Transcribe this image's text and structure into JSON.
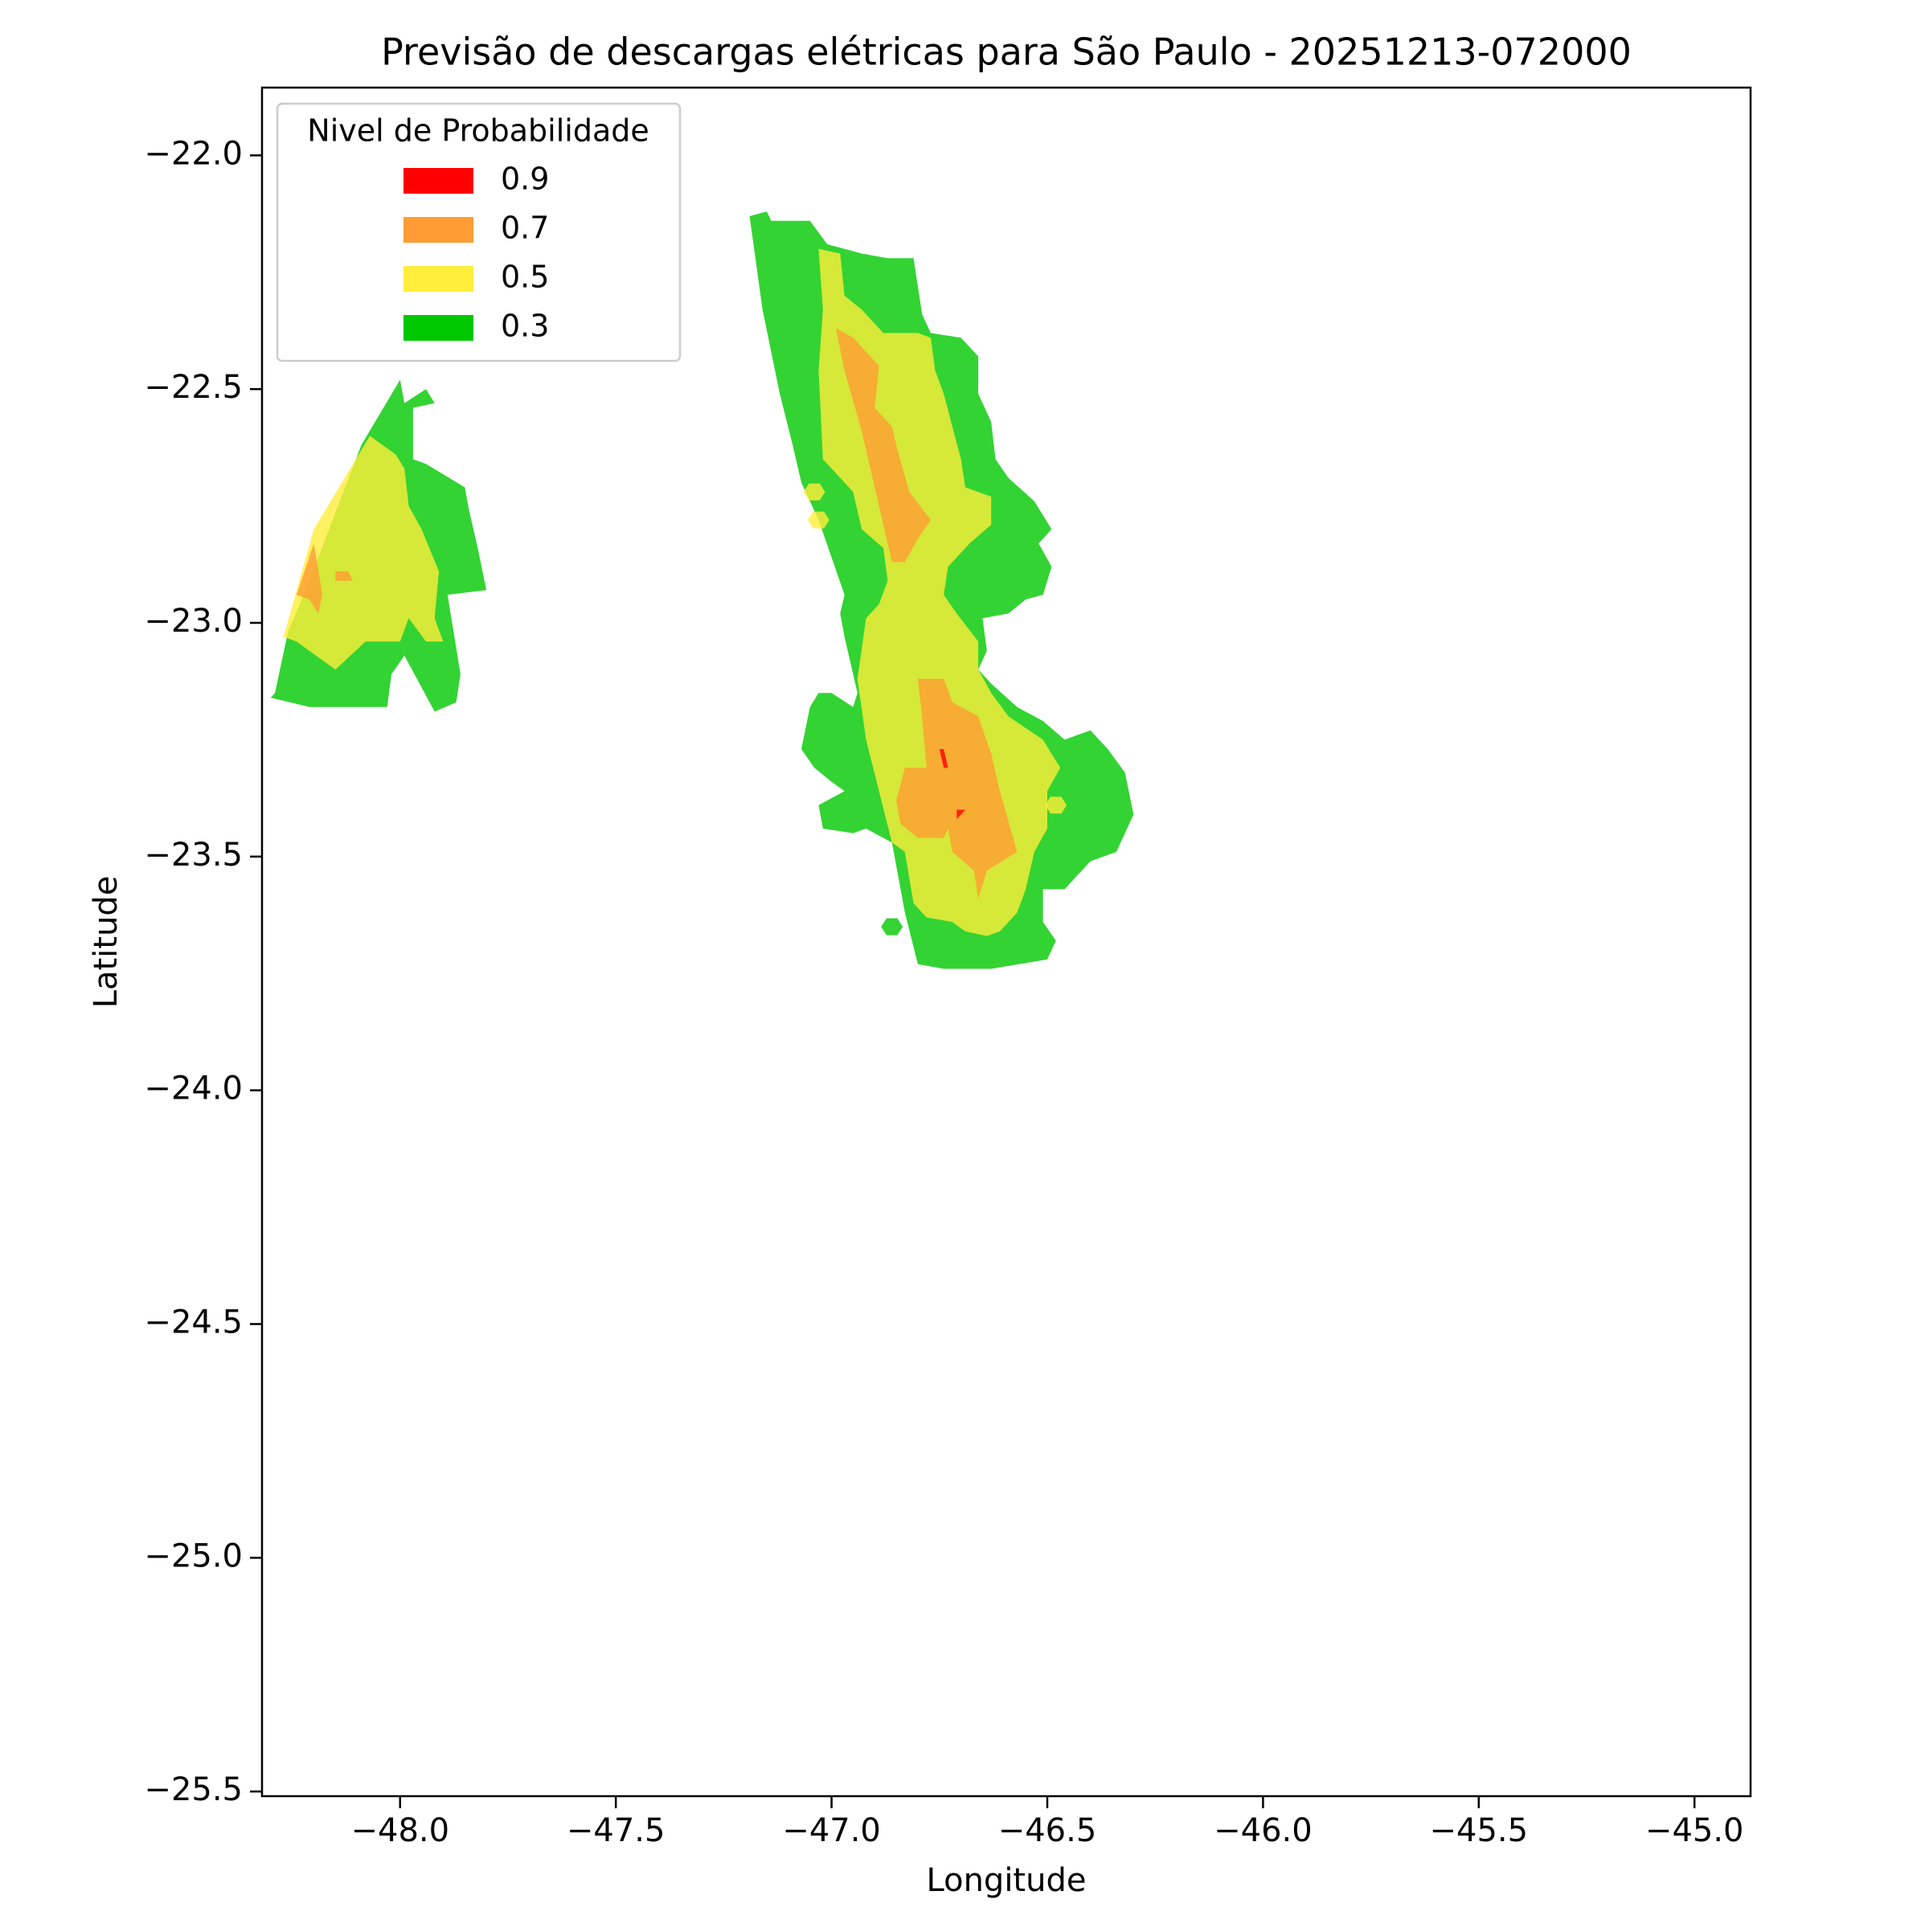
{
  "chart_data": {
    "type": "contour",
    "title": "Previsão de descargas elétricas para São Paulo - 20251213-072000",
    "xlabel": "Longitude",
    "ylabel": "Latitude",
    "xlim": [
      -48.32,
      -44.87
    ],
    "ylim": [
      -25.51,
      -21.855
    ],
    "xticks": [
      {
        "value": -48.0,
        "label": "−48.0"
      },
      {
        "value": -47.5,
        "label": "−47.5"
      },
      {
        "value": -47.0,
        "label": "−47.0"
      },
      {
        "value": -46.5,
        "label": "−46.5"
      },
      {
        "value": -46.0,
        "label": "−46.0"
      },
      {
        "value": -45.5,
        "label": "−45.5"
      },
      {
        "value": -45.0,
        "label": "−45.0"
      }
    ],
    "yticks": [
      {
        "value": -22.0,
        "label": "−22.0"
      },
      {
        "value": -22.5,
        "label": "−22.5"
      },
      {
        "value": -23.0,
        "label": "−23.0"
      },
      {
        "value": -23.5,
        "label": "−23.5"
      },
      {
        "value": -24.0,
        "label": "−24.0"
      },
      {
        "value": -24.5,
        "label": "−24.5"
      },
      {
        "value": -25.0,
        "label": "−25.0"
      },
      {
        "value": -25.5,
        "label": "−25.5"
      }
    ],
    "grid": false,
    "legend_title": "Nivel de Probabilidade",
    "legend_position": "upper-left",
    "fill_opacity": 0.8,
    "series": [
      {
        "name": "0.9",
        "color": "#ff0000",
        "regions": [
          [
            [
              -46.75,
              -23.27
            ],
            [
              -46.74,
              -23.27
            ],
            [
              -46.73,
              -23.31
            ],
            [
              -46.74,
              -23.31
            ]
          ],
          [
            [
              -46.71,
              -23.4
            ],
            [
              -46.69,
              -23.4
            ],
            [
              -46.71,
              -23.42
            ]
          ]
        ]
      },
      {
        "name": "0.7",
        "color": "#ff9c33",
        "regions": [
          [
            [
              -48.24,
              -22.94
            ],
            [
              -48.2,
              -22.83
            ],
            [
              -48.18,
              -22.94
            ],
            [
              -48.19,
              -22.98
            ],
            [
              -48.21,
              -22.95
            ]
          ],
          [
            [
              -48.15,
              -22.89
            ],
            [
              -48.12,
              -22.89
            ],
            [
              -48.11,
              -22.91
            ],
            [
              -48.15,
              -22.91
            ]
          ],
          [
            [
              -46.99,
              -22.37
            ],
            [
              -46.95,
              -22.39
            ],
            [
              -46.89,
              -22.45
            ],
            [
              -46.9,
              -22.54
            ],
            [
              -46.86,
              -22.58
            ],
            [
              -46.85,
              -22.62
            ],
            [
              -46.82,
              -22.72
            ],
            [
              -46.77,
              -22.78
            ],
            [
              -46.8,
              -22.82
            ],
            [
              -46.83,
              -22.87
            ],
            [
              -46.86,
              -22.87
            ],
            [
              -46.89,
              -22.75
            ],
            [
              -46.93,
              -22.59
            ],
            [
              -46.97,
              -22.46
            ]
          ],
          [
            [
              -46.8,
              -23.12
            ],
            [
              -46.74,
              -23.12
            ],
            [
              -46.72,
              -23.17
            ],
            [
              -46.66,
              -23.2
            ],
            [
              -46.63,
              -23.28
            ],
            [
              -46.61,
              -23.36
            ],
            [
              -46.57,
              -23.49
            ],
            [
              -46.64,
              -23.53
            ],
            [
              -46.66,
              -23.59
            ],
            [
              -46.67,
              -23.53
            ],
            [
              -46.72,
              -23.49
            ],
            [
              -46.73,
              -23.44
            ],
            [
              -46.74,
              -23.46
            ],
            [
              -46.8,
              -23.46
            ],
            [
              -46.84,
              -23.43
            ],
            [
              -46.85,
              -23.38
            ],
            [
              -46.83,
              -23.31
            ],
            [
              -46.78,
              -23.31
            ],
            [
              -46.79,
              -23.2
            ]
          ]
        ]
      },
      {
        "name": "0.5",
        "color": "#ffee3a",
        "regions": [
          [
            [
              -48.27,
              -23.03
            ],
            [
              -48.2,
              -22.8
            ],
            [
              -48.07,
              -22.6
            ],
            [
              -48.01,
              -22.64
            ],
            [
              -47.99,
              -22.67
            ],
            [
              -47.98,
              -22.75
            ],
            [
              -47.95,
              -22.8
            ],
            [
              -47.91,
              -22.89
            ],
            [
              -47.92,
              -22.99
            ],
            [
              -47.9,
              -23.04
            ],
            [
              -47.94,
              -23.04
            ],
            [
              -47.98,
              -22.99
            ],
            [
              -48.0,
              -23.04
            ],
            [
              -48.02,
              -23.04
            ],
            [
              -48.08,
              -23.04
            ],
            [
              -48.15,
              -23.1
            ],
            [
              -48.24,
              -23.04
            ]
          ],
          [
            [
              -47.03,
              -22.2
            ],
            [
              -46.98,
              -22.21
            ],
            [
              -46.97,
              -22.3
            ],
            [
              -46.93,
              -22.33
            ],
            [
              -46.88,
              -22.38
            ],
            [
              -46.8,
              -22.38
            ],
            [
              -46.77,
              -22.39
            ],
            [
              -46.76,
              -22.46
            ],
            [
              -46.74,
              -22.51
            ],
            [
              -46.72,
              -22.58
            ],
            [
              -46.7,
              -22.65
            ],
            [
              -46.69,
              -22.71
            ],
            [
              -46.63,
              -22.73
            ],
            [
              -46.63,
              -22.79
            ],
            [
              -46.68,
              -22.83
            ],
            [
              -46.73,
              -22.88
            ],
            [
              -46.74,
              -22.94
            ],
            [
              -46.71,
              -22.98
            ],
            [
              -46.66,
              -23.04
            ],
            [
              -46.66,
              -23.1
            ],
            [
              -46.63,
              -23.15
            ],
            [
              -46.59,
              -23.2
            ],
            [
              -46.51,
              -23.25
            ],
            [
              -46.47,
              -23.31
            ],
            [
              -46.5,
              -23.36
            ],
            [
              -46.5,
              -23.44
            ],
            [
              -46.53,
              -23.49
            ],
            [
              -46.55,
              -23.57
            ],
            [
              -46.57,
              -23.62
            ],
            [
              -46.61,
              -23.66
            ],
            [
              -46.64,
              -23.67
            ],
            [
              -46.69,
              -23.66
            ],
            [
              -46.72,
              -23.64
            ],
            [
              -46.78,
              -23.63
            ],
            [
              -46.81,
              -23.6
            ],
            [
              -46.83,
              -23.49
            ],
            [
              -46.86,
              -23.47
            ],
            [
              -46.89,
              -23.36
            ],
            [
              -46.92,
              -23.25
            ],
            [
              -46.94,
              -23.12
            ],
            [
              -46.92,
              -22.99
            ],
            [
              -46.89,
              -22.96
            ],
            [
              -46.87,
              -22.91
            ],
            [
              -46.88,
              -22.84
            ],
            [
              -46.93,
              -22.8
            ],
            [
              -46.95,
              -22.72
            ],
            [
              -47.02,
              -22.65
            ],
            [
              -47.03,
              -22.46
            ],
            [
              -47.02,
              -22.33
            ]
          ],
          [
            [
              -47.065,
              -22.72
            ],
            [
              -47.0525,
              -22.702
            ],
            [
              -47.0275,
              -22.702
            ],
            [
              -47.015,
              -22.72
            ],
            [
              -47.0275,
              -22.738
            ],
            [
              -47.0525,
              -22.738
            ]
          ],
          [
            [
              -47.055,
              -22.78
            ],
            [
              -47.0425,
              -22.762
            ],
            [
              -47.0175,
              -22.762
            ],
            [
              -47.005,
              -22.78
            ],
            [
              -47.0175,
              -22.798
            ],
            [
              -47.0425,
              -22.798
            ]
          ],
          [
            [
              -46.505,
              -23.39
            ],
            [
              -46.4925,
              -23.372
            ],
            [
              -46.4675,
              -23.372
            ],
            [
              -46.455,
              -23.39
            ],
            [
              -46.4675,
              -23.408
            ],
            [
              -46.4925,
              -23.408
            ]
          ]
        ]
      },
      {
        "name": "0.3",
        "color": "#00c800",
        "regions": [
          [
            [
              -48.29,
              -23.15
            ],
            [
              -48.26,
              -23.02
            ],
            [
              -48.21,
              -22.91
            ],
            [
              -48.09,
              -22.62
            ],
            [
              -48.0,
              -22.48
            ],
            [
              -47.99,
              -22.53
            ],
            [
              -47.94,
              -22.5
            ],
            [
              -47.92,
              -22.53
            ],
            [
              -47.97,
              -22.54
            ],
            [
              -47.97,
              -22.65
            ],
            [
              -47.94,
              -22.66
            ],
            [
              -47.85,
              -22.71
            ],
            [
              -47.84,
              -22.76
            ],
            [
              -47.82,
              -22.84
            ],
            [
              -47.8,
              -22.93
            ],
            [
              -47.89,
              -22.94
            ],
            [
              -47.86,
              -23.11
            ],
            [
              -47.87,
              -23.17
            ],
            [
              -47.92,
              -23.19
            ],
            [
              -47.99,
              -23.07
            ],
            [
              -48.02,
              -23.11
            ],
            [
              -48.03,
              -23.18
            ],
            [
              -48.21,
              -23.18
            ],
            [
              -48.3,
              -23.16
            ]
          ],
          [
            [
              -47.19,
              -22.13
            ],
            [
              -47.15,
              -22.12
            ],
            [
              -47.14,
              -22.14
            ],
            [
              -47.09,
              -22.14
            ],
            [
              -47.05,
              -22.14
            ],
            [
              -47.01,
              -22.19
            ],
            [
              -46.93,
              -22.21
            ],
            [
              -46.87,
              -22.22
            ],
            [
              -46.81,
              -22.22
            ],
            [
              -46.79,
              -22.34
            ],
            [
              -46.77,
              -22.38
            ],
            [
              -46.7,
              -22.39
            ],
            [
              -46.66,
              -22.43
            ],
            [
              -46.66,
              -22.51
            ],
            [
              -46.63,
              -22.57
            ],
            [
              -46.62,
              -22.65
            ],
            [
              -46.59,
              -22.69
            ],
            [
              -46.53,
              -22.74
            ],
            [
              -46.49,
              -22.8
            ],
            [
              -46.52,
              -22.83
            ],
            [
              -46.49,
              -22.88
            ],
            [
              -46.51,
              -22.94
            ],
            [
              -46.55,
              -22.95
            ],
            [
              -46.59,
              -22.98
            ],
            [
              -46.65,
              -22.99
            ],
            [
              -46.64,
              -23.06
            ],
            [
              -46.66,
              -23.1
            ],
            [
              -46.63,
              -23.13
            ],
            [
              -46.57,
              -23.18
            ],
            [
              -46.51,
              -23.21
            ],
            [
              -46.46,
              -23.25
            ],
            [
              -46.4,
              -23.23
            ],
            [
              -46.36,
              -23.27
            ],
            [
              -46.32,
              -23.32
            ],
            [
              -46.3,
              -23.41
            ],
            [
              -46.34,
              -23.49
            ],
            [
              -46.4,
              -23.51
            ],
            [
              -46.46,
              -23.57
            ],
            [
              -46.51,
              -23.57
            ],
            [
              -46.51,
              -23.64
            ],
            [
              -46.48,
              -23.68
            ],
            [
              -46.5,
              -23.72
            ],
            [
              -46.63,
              -23.74
            ],
            [
              -46.74,
              -23.74
            ],
            [
              -46.8,
              -23.73
            ],
            [
              -46.83,
              -23.62
            ],
            [
              -46.86,
              -23.47
            ],
            [
              -46.92,
              -23.44
            ],
            [
              -46.95,
              -23.45
            ],
            [
              -47.02,
              -23.44
            ],
            [
              -47.03,
              -23.39
            ],
            [
              -46.97,
              -23.36
            ],
            [
              -47.0,
              -23.34
            ],
            [
              -47.04,
              -23.31
            ],
            [
              -47.07,
              -23.27
            ],
            [
              -47.05,
              -23.18
            ],
            [
              -47.03,
              -23.15
            ],
            [
              -47.0,
              -23.15
            ],
            [
              -46.95,
              -23.18
            ],
            [
              -46.94,
              -23.15
            ],
            [
              -46.96,
              -23.07
            ],
            [
              -46.97,
              -23.03
            ],
            [
              -46.98,
              -22.98
            ],
            [
              -46.97,
              -22.94
            ],
            [
              -47.0,
              -22.86
            ],
            [
              -47.03,
              -22.78
            ],
            [
              -47.07,
              -22.7
            ],
            [
              -47.09,
              -22.62
            ],
            [
              -47.12,
              -22.51
            ],
            [
              -47.16,
              -22.33
            ]
          ],
          [
            [
              -46.885,
              -23.65
            ],
            [
              -46.8725,
              -23.632
            ],
            [
              -46.8475,
              -23.632
            ],
            [
              -46.835,
              -23.65
            ],
            [
              -46.8475,
              -23.668
            ],
            [
              -46.8725,
              -23.668
            ]
          ]
        ]
      }
    ]
  }
}
